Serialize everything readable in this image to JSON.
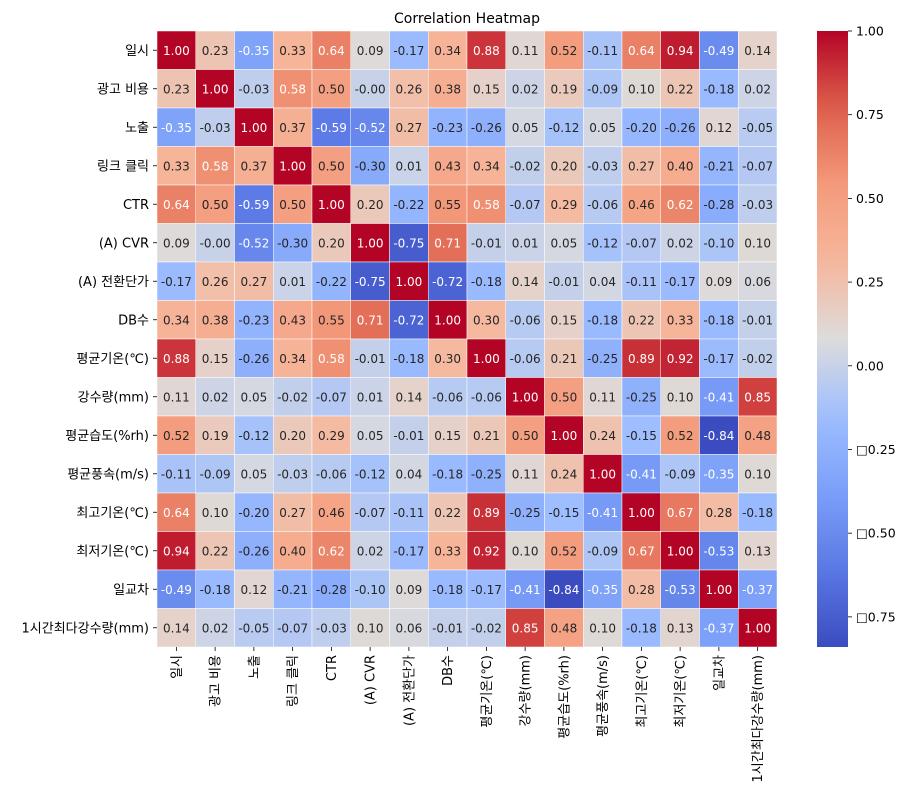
{
  "chart_data": {
    "type": "heatmap",
    "title": "Correlation Heatmap",
    "colormap": "coolwarm",
    "labels": [
      "일시",
      "광고 비용",
      "노출",
      "링크 클릭",
      "CTR",
      "(A) CVR",
      "(A) 전환단가",
      "DB수",
      "평균기온(℃)",
      "강수량(mm)",
      "평균습도(%rh)",
      "평균풍속(m/s)",
      "최고기온(℃)",
      "최저기온(℃)",
      "일교차",
      "1시간최다강수량(mm)"
    ],
    "matrix": [
      [
        1.0,
        0.23,
        -0.35,
        0.33,
        0.64,
        0.09,
        -0.17,
        0.34,
        0.88,
        0.11,
        0.52,
        -0.11,
        0.64,
        0.94,
        -0.49,
        0.14
      ],
      [
        0.23,
        1.0,
        -0.03,
        0.58,
        0.5,
        -0.0,
        0.26,
        0.38,
        0.15,
        0.02,
        0.19,
        -0.09,
        0.1,
        0.22,
        -0.18,
        0.02
      ],
      [
        -0.35,
        -0.03,
        1.0,
        0.37,
        -0.59,
        -0.52,
        0.27,
        -0.23,
        -0.26,
        0.05,
        -0.12,
        0.05,
        -0.2,
        -0.26,
        0.12,
        -0.05
      ],
      [
        0.33,
        0.58,
        0.37,
        1.0,
        0.5,
        -0.3,
        0.01,
        0.43,
        0.34,
        -0.02,
        0.2,
        -0.03,
        0.27,
        0.4,
        -0.21,
        -0.07
      ],
      [
        0.64,
        0.5,
        -0.59,
        0.5,
        1.0,
        0.2,
        -0.22,
        0.55,
        0.58,
        -0.07,
        0.29,
        -0.06,
        0.46,
        0.62,
        -0.28,
        -0.03
      ],
      [
        0.09,
        -0.0,
        -0.52,
        -0.3,
        0.2,
        1.0,
        -0.75,
        0.71,
        -0.01,
        0.01,
        0.05,
        -0.12,
        -0.07,
        0.02,
        -0.1,
        0.1
      ],
      [
        -0.17,
        0.26,
        0.27,
        0.01,
        -0.22,
        -0.75,
        1.0,
        -0.72,
        -0.18,
        0.14,
        -0.01,
        0.04,
        -0.11,
        -0.17,
        0.09,
        0.06
      ],
      [
        0.34,
        0.38,
        -0.23,
        0.43,
        0.55,
        0.71,
        -0.72,
        1.0,
        0.3,
        -0.06,
        0.15,
        -0.18,
        0.22,
        0.33,
        -0.18,
        -0.01
      ],
      [
        0.88,
        0.15,
        -0.26,
        0.34,
        0.58,
        -0.01,
        -0.18,
        0.3,
        1.0,
        -0.06,
        0.21,
        -0.25,
        0.89,
        0.92,
        -0.17,
        -0.02
      ],
      [
        0.11,
        0.02,
        0.05,
        -0.02,
        -0.07,
        0.01,
        0.14,
        -0.06,
        -0.06,
        1.0,
        0.5,
        0.11,
        -0.25,
        0.1,
        -0.41,
        0.85
      ],
      [
        0.52,
        0.19,
        -0.12,
        0.2,
        0.29,
        0.05,
        -0.01,
        0.15,
        0.21,
        0.5,
        1.0,
        0.24,
        -0.15,
        0.52,
        -0.84,
        0.48
      ],
      [
        -0.11,
        -0.09,
        0.05,
        -0.03,
        -0.06,
        -0.12,
        0.04,
        -0.18,
        -0.25,
        0.11,
        0.24,
        1.0,
        -0.41,
        -0.09,
        -0.35,
        0.1
      ],
      [
        0.64,
        0.1,
        -0.2,
        0.27,
        0.46,
        -0.07,
        -0.11,
        0.22,
        0.89,
        -0.25,
        -0.15,
        -0.41,
        1.0,
        0.67,
        0.28,
        -0.18
      ],
      [
        0.94,
        0.22,
        -0.26,
        0.4,
        0.62,
        0.02,
        -0.17,
        0.33,
        0.92,
        0.1,
        0.52,
        -0.09,
        0.67,
        1.0,
        -0.53,
        0.13
      ],
      [
        -0.49,
        -0.18,
        0.12,
        -0.21,
        -0.28,
        -0.1,
        0.09,
        -0.18,
        -0.17,
        -0.41,
        -0.84,
        -0.35,
        0.28,
        -0.53,
        1.0,
        -0.37
      ],
      [
        0.14,
        0.02,
        -0.05,
        -0.07,
        -0.03,
        0.1,
        0.06,
        -0.01,
        -0.02,
        0.85,
        0.48,
        0.1,
        -0.18,
        0.13,
        -0.37,
        1.0
      ]
    ],
    "value_range": [
      -0.84,
      1.0
    ],
    "colorbar_ticks": [
      1.0,
      0.75,
      0.5,
      0.25,
      0.0,
      -0.25,
      -0.5,
      -0.75
    ],
    "colorbar_tick_labels": [
      "1.00",
      "0.75",
      "0.50",
      "0.25",
      "0.00",
      "□0.25",
      "□0.50",
      "□0.75"
    ],
    "annotation_format": "0.00",
    "grid": false
  }
}
